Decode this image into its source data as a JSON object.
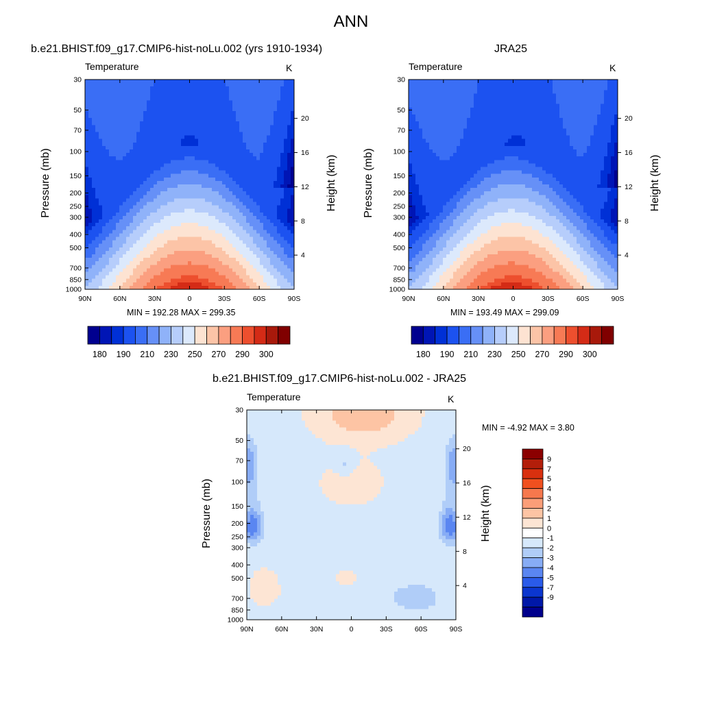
{
  "main_title": "ANN",
  "plots": [
    {
      "id": "model",
      "title": "b.e21.BHIST.f09_g17.CMIP6-hist-noLu.002 (yrs 1910-1934)",
      "variable": "Temperature",
      "units": "K",
      "left_axis_label": "Pressure (mb)",
      "right_axis_label": "Height (km)",
      "min_max_text": "MIN = 192.28  MAX = 299.35"
    },
    {
      "id": "obs",
      "title": "JRA25",
      "variable": "Temperature",
      "units": "K",
      "left_axis_label": "Pressure (mb)",
      "right_axis_label": "Height (km)",
      "min_max_text": "MIN = 193.49  MAX = 299.09"
    },
    {
      "id": "diff",
      "title": "b.e21.BHIST.f09_g17.CMIP6-hist-noLu.002 - JRA25",
      "variable": "Temperature",
      "units": "K",
      "left_axis_label": "Pressure (mb)",
      "right_axis_label": "Height (km)",
      "min_max_text": "MIN =  -4.92  MAX =   3.80"
    }
  ],
  "chart_data": {
    "type": "heatmap",
    "x_tick_labels": [
      "90N",
      "60N",
      "30N",
      "0",
      "30S",
      "60S",
      "90S"
    ],
    "x_ticks_deg": [
      90,
      60,
      30,
      0,
      -30,
      -60,
      -90
    ],
    "pressure_tick_labels": [
      "30",
      "50",
      "70",
      "100",
      "150",
      "200",
      "250",
      "300",
      "400",
      "500",
      "700",
      "850",
      "1000"
    ],
    "pressure_ticks_mb": [
      30,
      50,
      70,
      100,
      150,
      200,
      250,
      300,
      400,
      500,
      700,
      850,
      1000
    ],
    "height_tick_labels": [
      "4",
      "8",
      "12",
      "16",
      "20"
    ],
    "height_ticks_km": [
      4,
      8,
      12,
      16,
      20
    ],
    "pressure_range_mb": [
      30,
      1000
    ],
    "y_scale": "log pressure",
    "abs_colorbar": {
      "levels": [
        180,
        185,
        190,
        200,
        210,
        220,
        230,
        240,
        250,
        260,
        270,
        280,
        290,
        295,
        300
      ],
      "labels": [
        "180",
        "190",
        "210",
        "230",
        "250",
        "270",
        "290",
        "300"
      ],
      "colors": [
        "#00008f",
        "#0015b5",
        "#0030d6",
        "#1c52f0",
        "#3a6ef5",
        "#6690f7",
        "#8fb2f9",
        "#b6cdfb",
        "#dce9fc",
        "#fde3d2",
        "#fcc4a7",
        "#fb9f80",
        "#f77a55",
        "#ed4f2e",
        "#d42b16",
        "#a8190b",
        "#800000"
      ]
    },
    "diff_colorbar": {
      "labels": [
        "9",
        "7",
        "5",
        "4",
        "3",
        "2",
        "1",
        "0",
        "-1",
        "-2",
        "-3",
        "-4",
        "-5",
        "-7",
        "-9"
      ],
      "colors": [
        "#8b0000",
        "#b31e0a",
        "#d9300f",
        "#f0501f",
        "#f6784d",
        "#fb9e78",
        "#fdc4a4",
        "#fde5d4",
        "#ffffff",
        "#d6e8fb",
        "#b0cdf8",
        "#87acf5",
        "#5a86f1",
        "#2a5be9",
        "#0b36cf",
        "#0018a8",
        "#00008c"
      ]
    },
    "series": [
      {
        "name": "b.e21.BHIST.f09_g17.CMIP6-hist-noLu.002 (yrs 1910-1934)",
        "min": 192.28,
        "max": 299.35
      },
      {
        "name": "JRA25",
        "min": 193.49,
        "max": 299.09
      },
      {
        "name": "b.e21.BHIST.f09_g17.CMIP6-hist-noLu.002 - JRA25",
        "min": -4.92,
        "max": 3.8
      }
    ]
  }
}
